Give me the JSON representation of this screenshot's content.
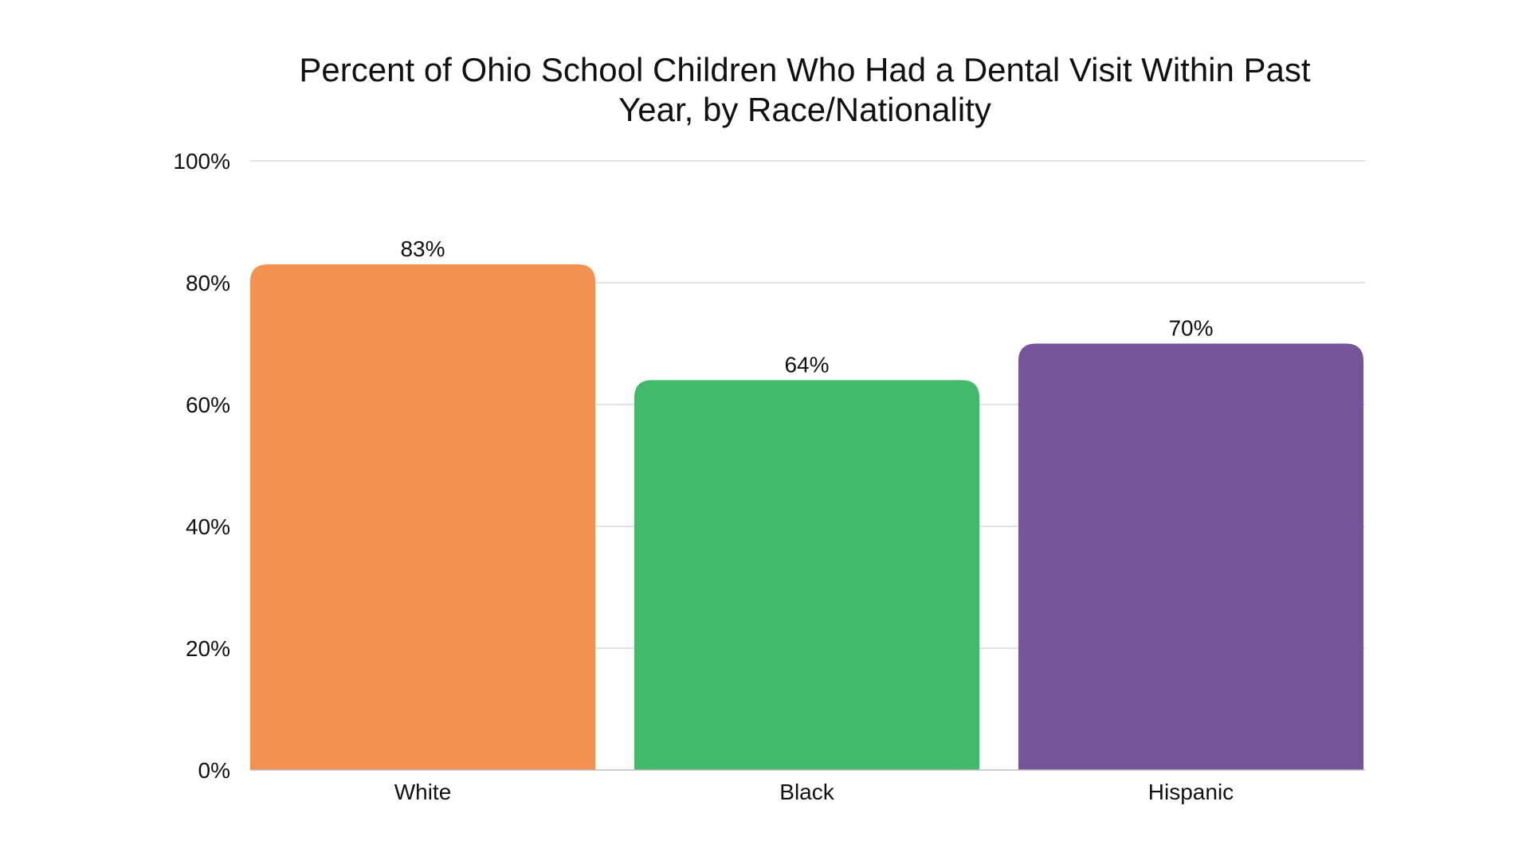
{
  "chart_data": {
    "type": "bar",
    "title_lines": [
      "Percent of Ohio School Children Who Had a Dental Visit Within Past",
      "Year, by Race/Nationality"
    ],
    "xlabel": "",
    "ylabel": "",
    "categories": [
      "White",
      "Black",
      "Hispanic"
    ],
    "values": [
      83,
      64,
      70
    ],
    "value_labels": [
      "83%",
      "64%",
      "70%"
    ],
    "bar_colors": [
      "#F39153",
      "#43B96B",
      "#75549C"
    ],
    "ylim": [
      0,
      100
    ],
    "yticks": [
      0,
      20,
      40,
      60,
      80,
      100
    ],
    "ytick_labels": [
      "0%",
      "20%",
      "40%",
      "60%",
      "80%",
      "100%"
    ],
    "grid": true,
    "legend": "none"
  }
}
